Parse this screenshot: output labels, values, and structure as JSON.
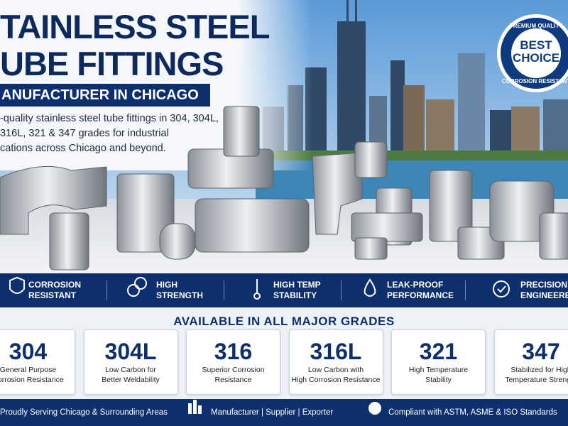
{
  "header": {
    "title_lines": [
      "TAINLESS STEEL",
      "UBE FITTINGS"
    ],
    "subtitle": "ANUFACTURER IN CHICAGO",
    "description_lines": [
      "-quality stainless steel tube fittings in 304, 304L,",
      "316L, 321 & 347 grades for industrial",
      "cations across Chicago and beyond."
    ]
  },
  "badge": {
    "top": "PREMIUM QUALITY",
    "main_lines": [
      "BEST",
      "CHOICE"
    ],
    "bottom": "CORROSION RESISTANT"
  },
  "features": [
    {
      "lines": [
        "CORROSION",
        "RESISTANT"
      ]
    },
    {
      "lines": [
        "HIGH",
        "STRENGTH"
      ]
    },
    {
      "lines": [
        "HIGH TEMP",
        "STABILITY"
      ]
    },
    {
      "lines": [
        "LEAK-PROOF",
        "PERFORMANCE"
      ]
    },
    {
      "lines": [
        "PRECISION",
        "ENGINEERED"
      ]
    }
  ],
  "grades_title": "AVAILABLE IN ALL MAJOR GRADES",
  "grades": [
    {
      "grade": "304",
      "lines": [
        "General Purpose",
        "Corrosion Resistance"
      ]
    },
    {
      "grade": "304L",
      "lines": [
        "Low Carbon for",
        "Better Weldability"
      ]
    },
    {
      "grade": "316",
      "lines": [
        "Superior Corrosion",
        "Resistance"
      ]
    },
    {
      "grade": "316L",
      "lines": [
        "Low Carbon with",
        "High Corrosion Resistance"
      ]
    },
    {
      "grade": "321",
      "lines": [
        "High Temperature",
        "Stability"
      ]
    },
    {
      "grade": "347",
      "lines": [
        "Stabilized for High",
        "Temperature Strength"
      ]
    }
  ],
  "footer": [
    "Proudly Serving Chicago & Surrounding Areas",
    "Manufacturer | Supplier | Exporter",
    "Compliant with ASTM, ASME & ISO Standards"
  ]
}
